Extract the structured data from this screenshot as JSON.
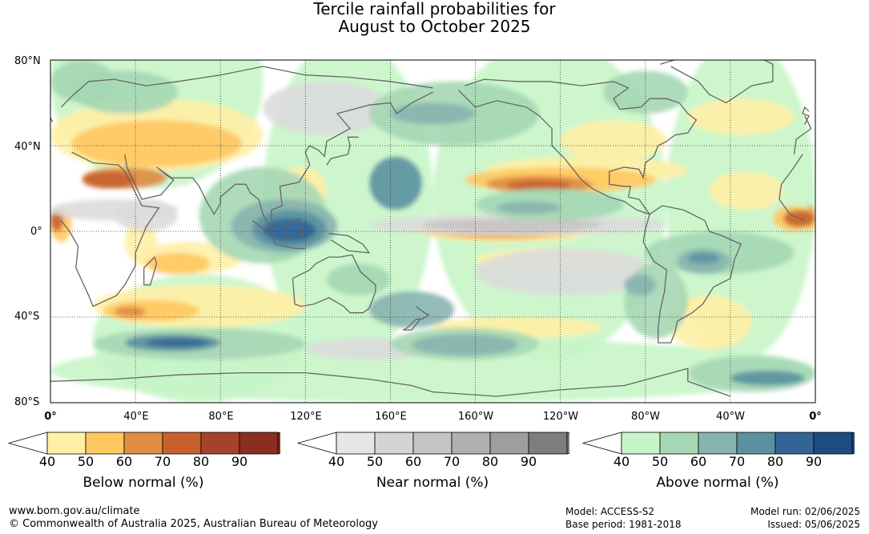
{
  "title": {
    "line1": "Tercile rainfall probabilities for",
    "line2": "August to October 2025"
  },
  "map": {
    "lat_labels": [
      "80°N",
      "40°N",
      "0°",
      "40°S",
      "80°S"
    ],
    "lon_labels": [
      "0°",
      "40°E",
      "80°E",
      "120°E",
      "160°E",
      "160°W",
      "120°W",
      "80°W",
      "40°W",
      "0°"
    ]
  },
  "legends": [
    {
      "title": "Below normal (%)",
      "ticks": [
        "40",
        "50",
        "60",
        "70",
        "80",
        "90"
      ],
      "colors": [
        "#ffffff",
        "#fff0a5",
        "#ffc85f",
        "#e08c41",
        "#c8602e",
        "#a5432a",
        "#8a2e1f"
      ]
    },
    {
      "title": "Near normal (%)",
      "ticks": [
        "40",
        "50",
        "60",
        "70",
        "80",
        "90"
      ],
      "colors": [
        "#ffffff",
        "#e6e6e6",
        "#d4d4d4",
        "#c4c4c4",
        "#b0b0b0",
        "#9e9e9e",
        "#7d7d7d"
      ]
    },
    {
      "title": "Above normal (%)",
      "ticks": [
        "40",
        "50",
        "60",
        "70",
        "80",
        "90"
      ],
      "colors": [
        "#ffffff",
        "#c8f5c8",
        "#a5d7b4",
        "#87b4af",
        "#5a91a0",
        "#326496",
        "#1e4b82"
      ]
    }
  ],
  "footer": {
    "url": "www.bom.gov.au/climate",
    "copyright": "© Commonwealth of Australia 2025, Australian Bureau of Meteorology",
    "model": "Model: ACCESS-S2",
    "base_period": "Base period: 1981-2018",
    "model_run": "Model run: 02/06/2025",
    "issued": "Issued: 05/06/2025"
  }
}
